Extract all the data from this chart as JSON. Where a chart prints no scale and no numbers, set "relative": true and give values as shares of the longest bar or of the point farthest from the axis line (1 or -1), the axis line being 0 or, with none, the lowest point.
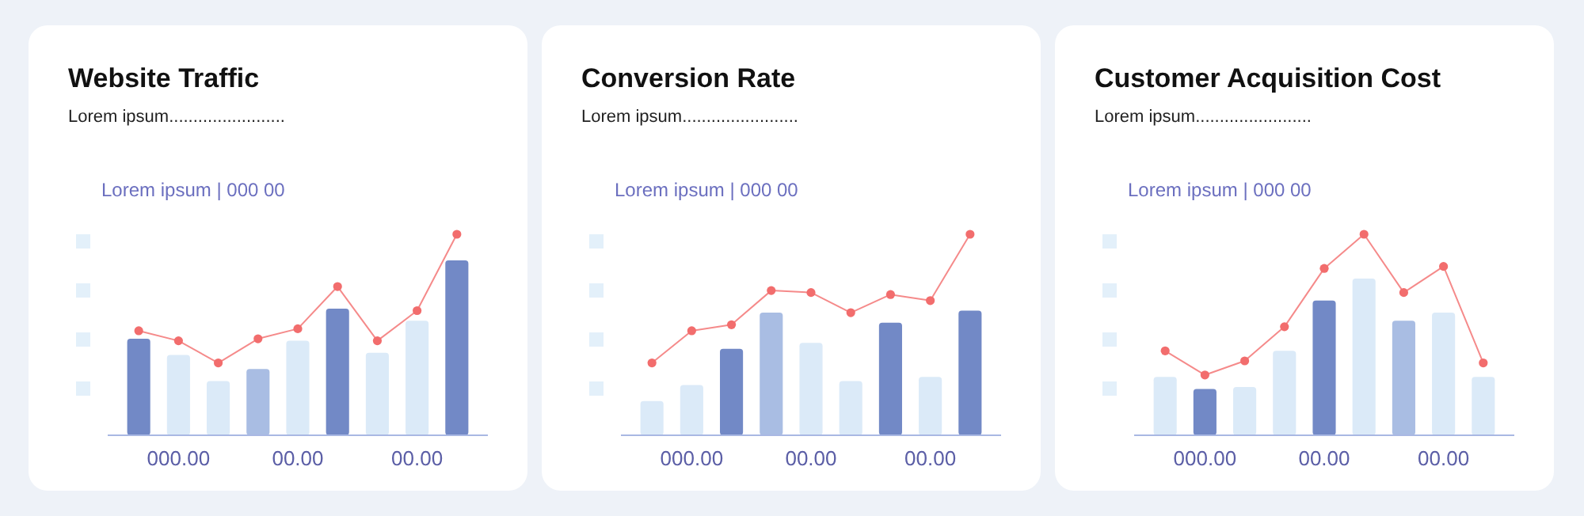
{
  "chart_data": [
    {
      "type": "bar",
      "title": "Website Traffic",
      "subtitle": "Lorem ipsum........................",
      "annotations": [
        "Lorem ipsum | 000 00"
      ],
      "relative": true,
      "marker": "circle",
      "categories": [
        null,
        "000.00",
        null,
        null,
        "00.00",
        null,
        null,
        "00.00",
        null
      ],
      "series": [
        {
          "type": "bar",
          "colors": [
            "#7289c6",
            "#dbeaf8",
            "#dbeaf8",
            "#a9bde3",
            "#dbeaf8",
            "#7289c6",
            "#dbeaf8",
            "#dbeaf8",
            "#7289c6"
          ],
          "values": [
            0.48,
            0.4,
            0.27,
            0.33,
            0.47,
            0.63,
            0.41,
            0.57,
            0.87
          ]
        },
        {
          "type": "line",
          "color": "#f26d6d",
          "values": [
            0.52,
            0.47,
            0.36,
            0.48,
            0.53,
            0.74,
            0.47,
            0.62,
            1
          ]
        }
      ]
    },
    {
      "type": "bar",
      "title": "Conversion Rate",
      "subtitle": "Lorem ipsum........................",
      "annotations": [
        "Lorem ipsum | 000 00"
      ],
      "relative": true,
      "marker": "circle",
      "categories": [
        null,
        "000.00",
        null,
        null,
        "00.00",
        null,
        null,
        "00.00",
        null
      ],
      "series": [
        {
          "type": "bar",
          "colors": [
            "#dbeaf8",
            "#dbeaf8",
            "#7289c6",
            "#a9bde3",
            "#dbeaf8",
            "#dbeaf8",
            "#7289c6",
            "#dbeaf8",
            "#7289c6"
          ],
          "values": [
            0.17,
            0.25,
            0.43,
            0.61,
            0.46,
            0.27,
            0.56,
            0.29,
            0.62
          ]
        },
        {
          "type": "line",
          "color": "#f26d6d",
          "values": [
            0.36,
            0.52,
            0.55,
            0.72,
            0.71,
            0.61,
            0.7,
            0.67,
            1
          ]
        }
      ]
    },
    {
      "type": "bar",
      "title": "Customer Acquisition Cost",
      "subtitle": "Lorem ipsum........................",
      "annotations": [
        "Lorem ipsum | 000 00"
      ],
      "relative": true,
      "marker": "circle",
      "categories": [
        null,
        "000.00",
        null,
        null,
        "00.00",
        null,
        null,
        "00.00",
        null
      ],
      "series": [
        {
          "type": "bar",
          "colors": [
            "#dbeaf8",
            "#7289c6",
            "#dbeaf8",
            "#dbeaf8",
            "#7289c6",
            "#dbeaf8",
            "#a9bde3",
            "#dbeaf8",
            "#dbeaf8"
          ],
          "values": [
            0.29,
            0.23,
            0.24,
            0.42,
            0.67,
            0.78,
            0.57,
            0.61,
            0.29
          ]
        },
        {
          "type": "line",
          "color": "#f26d6d",
          "values": [
            0.42,
            0.3,
            0.37,
            0.54,
            0.83,
            1,
            0.71,
            0.84,
            0.36
          ]
        }
      ]
    }
  ]
}
